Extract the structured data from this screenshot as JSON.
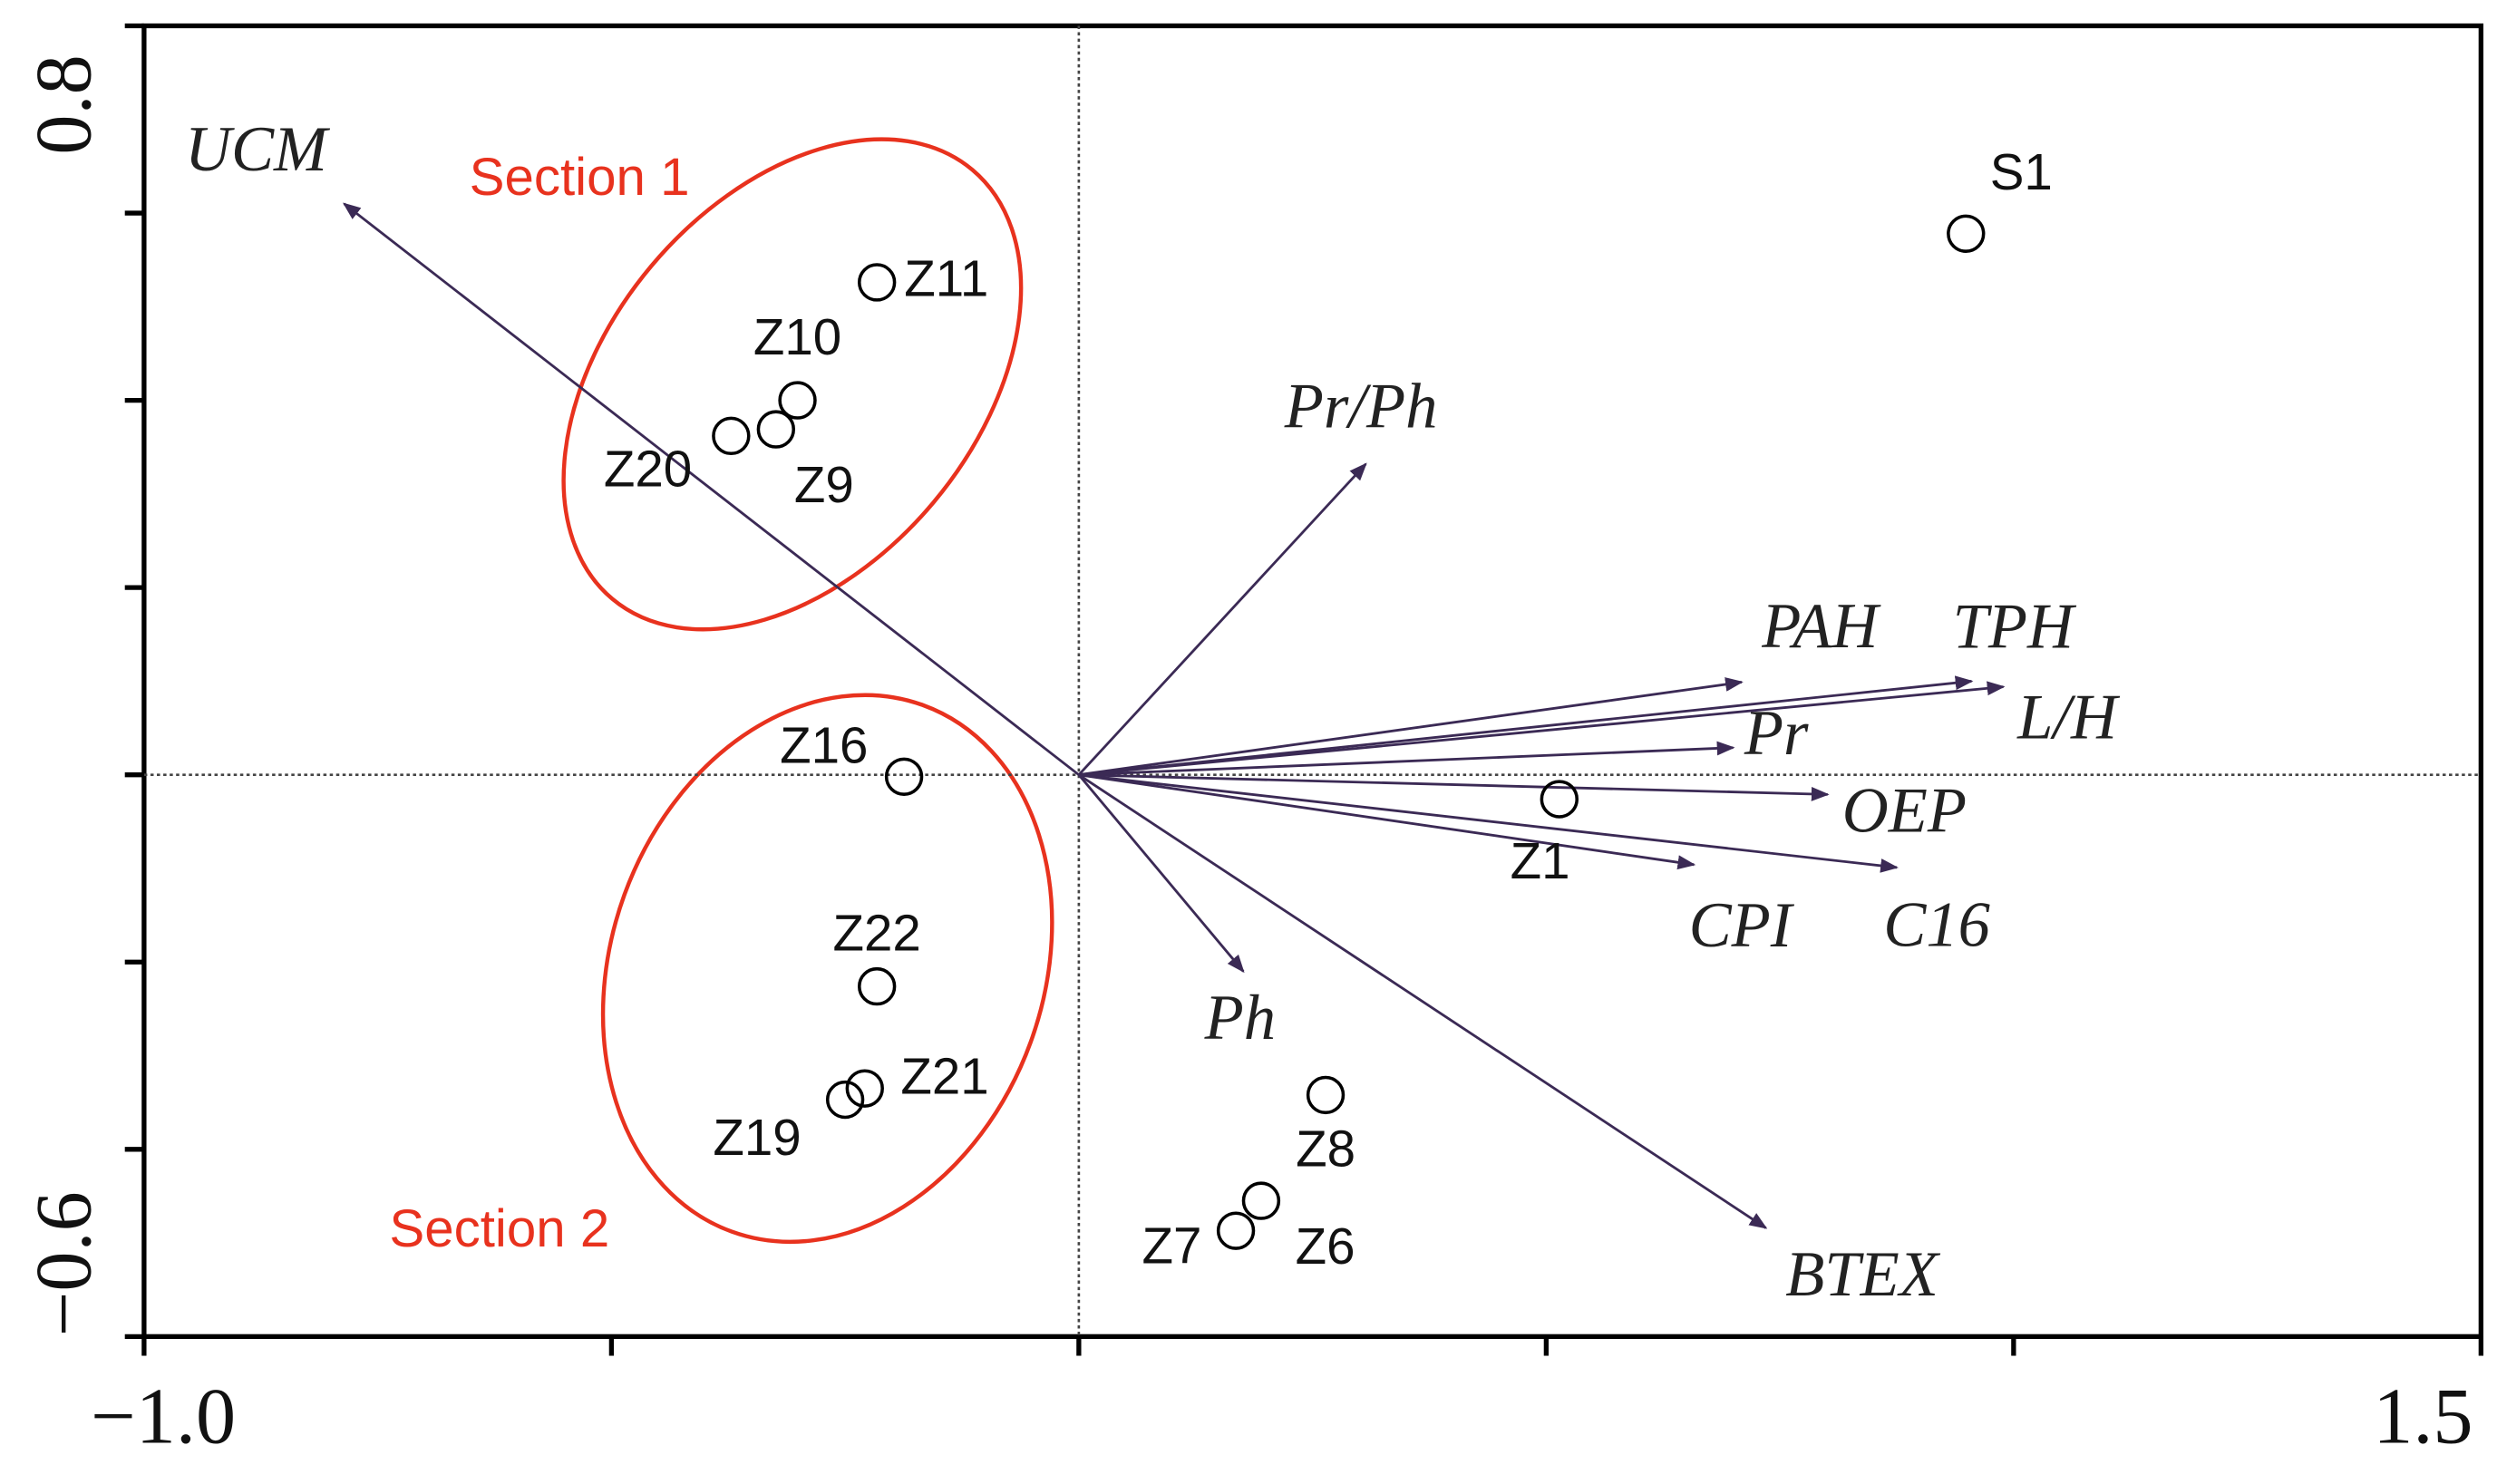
{
  "chart_data": {
    "type": "biplot",
    "xlim": [
      -1.0,
      1.5
    ],
    "ylim": [
      -0.6,
      0.8
    ],
    "xticks": [
      {
        "value": -1.0,
        "label": "−1.0"
      },
      1.5
    ],
    "yticks": [
      {
        "value": -0.6,
        "label": "−0.6"
      },
      0.8
    ],
    "xminor_ticks": [
      -0.5,
      0,
      0.5,
      1.0
    ],
    "yminor_ticks": [
      -0.4,
      -0.2,
      0,
      0.2,
      0.4,
      0.6
    ],
    "sites": {
      "names": [
        "S1",
        "Z11",
        "Z10",
        "Z9",
        "Z20",
        "Z16",
        "Z22",
        "Z21",
        "Z19",
        "Z1",
        "Z8",
        "Z6",
        "Z7"
      ],
      "x": [
        0.949,
        -0.216,
        -0.301,
        -0.324,
        -0.372,
        -0.187,
        -0.216,
        -0.229,
        -0.25,
        0.514,
        0.264,
        0.195,
        0.168
      ],
      "y": [
        0.578,
        0.526,
        0.4,
        0.369,
        0.362,
        -0.002,
        -0.226,
        -0.335,
        -0.347,
        -0.026,
        -0.342,
        -0.455,
        -0.487
      ]
    },
    "vectors": {
      "names": [
        "UCM",
        "Pr/Ph",
        "PAH",
        "TPH",
        "L/H",
        "Pr",
        "OEP",
        "CPI",
        "C16",
        "Ph",
        "BTEX"
      ],
      "x": [
        -0.786,
        0.307,
        0.709,
        0.955,
        0.989,
        0.7,
        0.801,
        0.658,
        0.875,
        0.176,
        0.735
      ],
      "y": [
        0.61,
        0.332,
        0.099,
        0.1,
        0.094,
        0.029,
        -0.021,
        -0.096,
        -0.099,
        -0.21,
        -0.484
      ],
      "color": "#3b2a55"
    },
    "annotations": [
      "Section 1",
      "Section 2"
    ],
    "annotation_color": "#e8321e"
  }
}
